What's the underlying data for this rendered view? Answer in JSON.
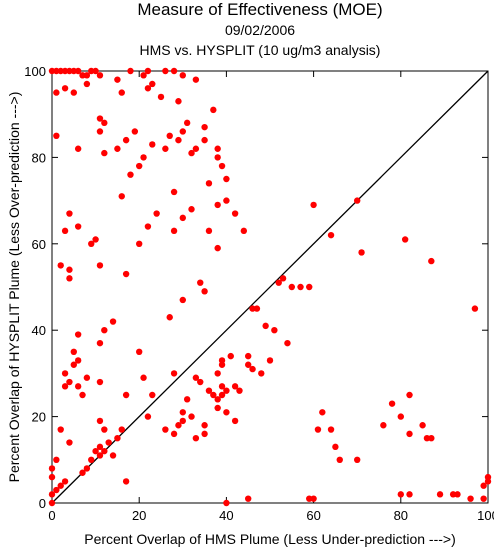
{
  "chart_data": {
    "type": "scatter",
    "title": "Measure of Effectiveness (MOE)",
    "date": "09/02/2006",
    "subtitle": "HMS vs. HYSPLIT  (10 ug/m3 analysis)",
    "xlabel": "Percent Overlap of HMS Plume (Less Under-prediction --->)",
    "ylabel": "Percent Overlap of HYSPLIT Plume (Less Over-prediction --->)",
    "xlim": [
      0,
      100
    ],
    "ylim": [
      0,
      100
    ],
    "xticks": [
      0,
      20,
      40,
      60,
      80,
      100
    ],
    "yticks": [
      0,
      20,
      40,
      60,
      80,
      100
    ],
    "reference_line": [
      [
        0,
        0
      ],
      [
        100,
        100
      ]
    ],
    "point_color": "#ff0000",
    "line_color": "#000000",
    "points": [
      [
        0,
        100
      ],
      [
        1,
        100
      ],
      [
        2,
        100
      ],
      [
        3,
        100
      ],
      [
        4,
        100
      ],
      [
        5,
        100
      ],
      [
        6,
        100
      ],
      [
        7,
        99
      ],
      [
        8,
        99
      ],
      [
        9,
        100
      ],
      [
        10,
        100
      ],
      [
        11,
        99
      ],
      [
        8,
        97
      ],
      [
        3,
        96
      ],
      [
        1,
        95
      ],
      [
        5,
        95
      ],
      [
        15,
        98
      ],
      [
        18,
        100
      ],
      [
        21,
        99
      ],
      [
        22,
        100
      ],
      [
        26,
        100
      ],
      [
        28,
        100
      ],
      [
        30,
        99
      ],
      [
        23,
        97
      ],
      [
        22,
        96
      ],
      [
        25,
        94
      ],
      [
        29,
        93
      ],
      [
        33,
        98
      ],
      [
        37,
        91
      ],
      [
        35,
        87
      ],
      [
        31,
        88
      ],
      [
        30,
        86
      ],
      [
        29,
        84
      ],
      [
        27,
        85
      ],
      [
        26,
        82
      ],
      [
        23,
        83
      ],
      [
        21,
        80
      ],
      [
        20,
        78
      ],
      [
        18,
        76
      ],
      [
        15,
        82
      ],
      [
        11,
        86
      ],
      [
        12,
        88
      ],
      [
        11,
        89
      ],
      [
        16,
        95
      ],
      [
        12,
        81
      ],
      [
        6,
        82
      ],
      [
        1,
        85
      ],
      [
        17,
        84
      ],
      [
        19,
        86
      ],
      [
        32,
        81
      ],
      [
        33,
        82
      ],
      [
        35,
        84
      ],
      [
        38,
        80
      ],
      [
        38,
        82
      ],
      [
        39,
        78
      ],
      [
        40,
        75
      ],
      [
        36,
        74
      ],
      [
        28,
        72
      ],
      [
        16,
        71
      ],
      [
        24,
        67
      ],
      [
        30,
        66
      ],
      [
        32,
        68
      ],
      [
        38,
        69
      ],
      [
        40,
        70
      ],
      [
        42,
        67
      ],
      [
        44,
        63
      ],
      [
        36,
        63
      ],
      [
        28,
        63
      ],
      [
        22,
        64
      ],
      [
        20,
        60
      ],
      [
        10,
        61
      ],
      [
        9,
        60
      ],
      [
        6,
        64
      ],
      [
        4,
        67
      ],
      [
        3,
        63
      ],
      [
        2,
        55
      ],
      [
        4,
        54
      ],
      [
        11,
        55
      ],
      [
        17,
        53
      ],
      [
        4,
        52
      ],
      [
        38,
        59
      ],
      [
        60,
        69
      ],
      [
        70,
        70
      ],
      [
        64,
        62
      ],
      [
        71,
        58
      ],
      [
        81,
        61
      ],
      [
        87,
        56
      ],
      [
        34,
        51
      ],
      [
        35,
        49
      ],
      [
        30,
        47
      ],
      [
        27,
        43
      ],
      [
        14,
        42
      ],
      [
        12,
        40
      ],
      [
        11,
        37
      ],
      [
        6,
        39
      ],
      [
        5,
        35
      ],
      [
        6,
        33
      ],
      [
        5,
        32
      ],
      [
        3,
        30
      ],
      [
        3,
        27
      ],
      [
        4,
        28
      ],
      [
        6,
        27
      ],
      [
        8,
        29
      ],
      [
        11,
        28
      ],
      [
        7,
        25
      ],
      [
        20,
        35
      ],
      [
        21,
        29
      ],
      [
        17,
        25
      ],
      [
        23,
        25
      ],
      [
        28,
        30
      ],
      [
        33,
        29
      ],
      [
        34,
        28
      ],
      [
        36,
        26
      ],
      [
        37,
        25
      ],
      [
        38,
        24
      ],
      [
        39,
        25
      ],
      [
        39,
        27
      ],
      [
        40,
        26
      ],
      [
        42,
        27
      ],
      [
        43,
        26
      ],
      [
        38,
        30
      ],
      [
        39,
        32
      ],
      [
        39,
        33
      ],
      [
        41,
        34
      ],
      [
        45,
        32
      ],
      [
        48,
        30
      ],
      [
        50,
        33
      ],
      [
        51,
        40
      ],
      [
        46,
        45
      ],
      [
        47,
        45
      ],
      [
        52,
        51
      ],
      [
        53,
        52
      ],
      [
        55,
        50
      ],
      [
        57,
        50
      ],
      [
        59,
        50
      ],
      [
        49,
        41
      ],
      [
        54,
        37
      ],
      [
        45,
        34
      ],
      [
        46,
        31
      ],
      [
        38,
        22
      ],
      [
        40,
        21
      ],
      [
        42,
        19
      ],
      [
        35,
        18
      ],
      [
        31,
        24
      ],
      [
        30,
        21
      ],
      [
        28,
        16
      ],
      [
        29,
        18
      ],
      [
        30,
        19
      ],
      [
        32,
        20
      ],
      [
        33,
        15
      ],
      [
        35,
        16
      ],
      [
        26,
        17
      ],
      [
        22,
        20
      ],
      [
        16,
        17
      ],
      [
        15,
        15
      ],
      [
        13,
        14
      ],
      [
        12,
        12
      ],
      [
        11,
        11
      ],
      [
        10,
        12
      ],
      [
        9,
        10
      ],
      [
        8,
        8
      ],
      [
        7,
        7
      ],
      [
        3,
        5
      ],
      [
        2,
        4
      ],
      [
        1,
        3
      ],
      [
        0,
        6
      ],
      [
        0,
        8
      ],
      [
        1,
        10
      ],
      [
        4,
        14
      ],
      [
        11,
        13
      ],
      [
        11,
        19
      ],
      [
        12,
        17
      ],
      [
        14,
        11
      ],
      [
        17,
        5
      ],
      [
        2,
        17
      ],
      [
        0,
        2
      ],
      [
        0,
        0
      ],
      [
        40,
        0
      ],
      [
        45,
        1
      ],
      [
        59,
        1
      ],
      [
        60,
        1
      ],
      [
        61,
        17
      ],
      [
        62,
        21
      ],
      [
        64,
        17
      ],
      [
        65,
        13
      ],
      [
        66,
        10
      ],
      [
        70,
        10
      ],
      [
        76,
        18
      ],
      [
        78,
        23
      ],
      [
        80,
        20
      ],
      [
        82,
        16
      ],
      [
        82,
        25
      ],
      [
        85,
        18
      ],
      [
        86,
        15
      ],
      [
        87,
        15
      ],
      [
        80,
        2
      ],
      [
        82,
        2
      ],
      [
        89,
        2
      ],
      [
        92,
        2
      ],
      [
        93,
        2
      ],
      [
        96,
        1
      ],
      [
        97,
        45
      ],
      [
        99,
        1
      ],
      [
        99,
        4
      ],
      [
        100,
        5
      ],
      [
        100,
        6
      ]
    ]
  }
}
